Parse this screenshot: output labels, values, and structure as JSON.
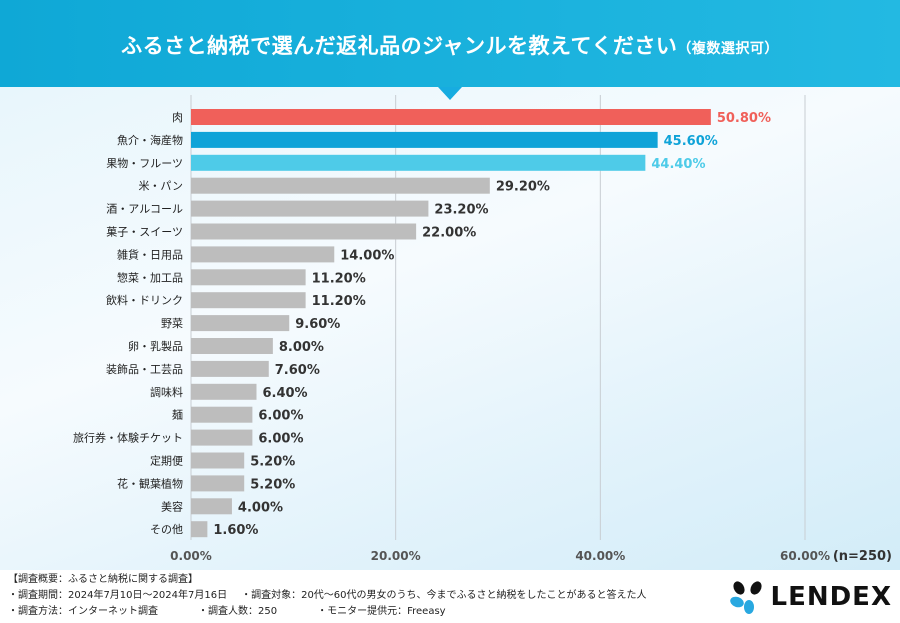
{
  "header": {
    "title": "ふるさと納税で選んだ返礼品のジャンルを教えてください",
    "subtitle": "（複数選択可）"
  },
  "chart_data": {
    "type": "bar",
    "orientation": "horizontal",
    "categories": [
      "肉",
      "魚介・海産物",
      "果物・フルーツ",
      "米・パン",
      "酒・アルコール",
      "菓子・スイーツ",
      "雑貨・日用品",
      "惣菜・加工品",
      "飲料・ドリンク",
      "野菜",
      "卵・乳製品",
      "装飾品・工芸品",
      "調味料",
      "麺",
      "旅行券・体験チケット",
      "定期便",
      "花・観葉植物",
      "美容",
      "その他"
    ],
    "values": [
      50.8,
      45.6,
      44.4,
      29.2,
      23.2,
      22.0,
      14.0,
      11.2,
      11.2,
      9.6,
      8.0,
      7.6,
      6.4,
      6.0,
      6.0,
      5.2,
      5.2,
      4.0,
      1.6
    ],
    "data_labels": [
      "50.80%",
      "45.60%",
      "44.40%",
      "29.20%",
      "23.20%",
      "22.00%",
      "14.00%",
      "11.20%",
      "11.20%",
      "9.60%",
      "8.00%",
      "7.60%",
      "6.40%",
      "6.00%",
      "6.00%",
      "5.20%",
      "5.20%",
      "4.00%",
      "1.60%"
    ],
    "xlim": [
      0,
      60
    ],
    "x_ticks": [
      "0.00%",
      "20.00%",
      "40.00%",
      "60.00%"
    ],
    "grid": true,
    "note": "(n=250)",
    "colors": {
      "rank1": "#f0605a",
      "rank2": "#0fa3d8",
      "rank3": "#4ecbe8",
      "other": "#bdbdbd"
    }
  },
  "footer": {
    "heading": "【調査概要：ふるさと納税に関する調査】",
    "period": "・調査期間：2024年7月10日～2024年7月16日",
    "target": "・調査対象：20代～60代の男女のうち、今までふるさと納税をしたことがあると答えた人",
    "method": "・調査方法：インターネット調査",
    "count": "・調査人数：250",
    "provider": "・モニター提供元：Freeasy"
  },
  "logo": {
    "text": "LENDEX"
  }
}
